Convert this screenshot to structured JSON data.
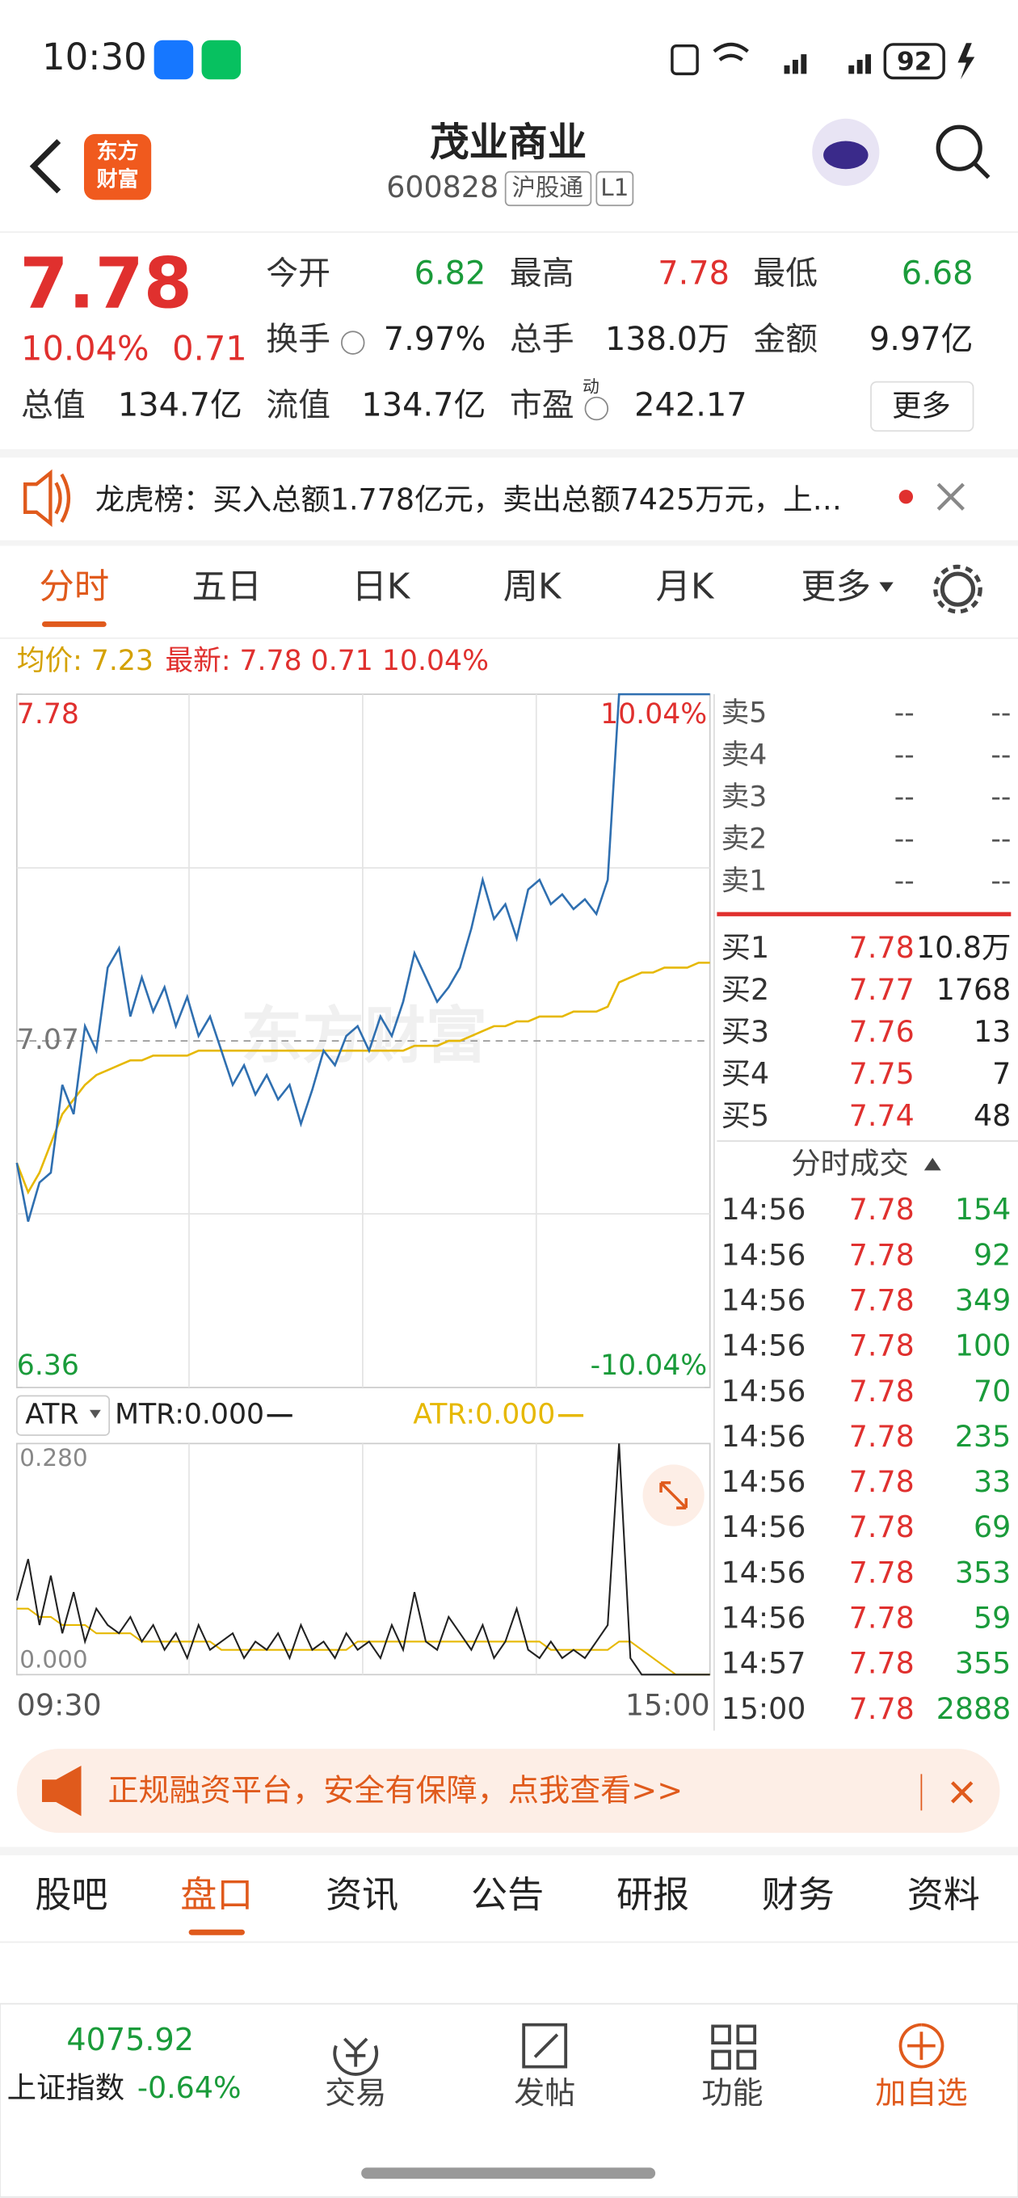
{
  "status_bar": {
    "time": "10:30",
    "battery": "92"
  },
  "header": {
    "logo": [
      "东方",
      "财富"
    ],
    "title": "茂业商业",
    "code": "600828",
    "tags": [
      "沪股通",
      "L1"
    ]
  },
  "quote": {
    "price": "7.78",
    "change_pct": "10.04%",
    "change": "0.71",
    "stats": [
      {
        "label": "今开",
        "value": "6.82",
        "color": "#1a9b3a"
      },
      {
        "label": "最高",
        "value": "7.78",
        "color": "#e0302e"
      },
      {
        "label": "最低",
        "value": "6.68",
        "color": "#1a9b3a"
      },
      {
        "label": "换手",
        "value": "7.97%",
        "color": "#222222"
      },
      {
        "label": "总手",
        "value": "138.0万",
        "color": "#222222"
      },
      {
        "label": "金额",
        "value": "9.97亿",
        "color": "#222222"
      },
      {
        "label": "总值",
        "value": "134.7亿",
        "color": "#222222"
      },
      {
        "label": "流值",
        "value": "134.7亿",
        "color": "#222222"
      },
      {
        "label": "市盈",
        "value": "242.17",
        "color": "#222222",
        "sup": "动"
      }
    ],
    "more": "更多"
  },
  "notice": "龙虎榜：买入总额1.778亿元，卖出总额7425万元，上…",
  "tabs": {
    "items": [
      "分时",
      "五日",
      "日K",
      "周K",
      "月K",
      "更多"
    ],
    "active": 0
  },
  "chart_data": [
    {
      "type": "line",
      "avg_label": "均价: 7.23",
      "latest_label": "最新: 7.78 0.71 10.04%",
      "watermark": "东方财富",
      "xlabels": [
        "09:30",
        "15:00"
      ],
      "ylim": [
        6.36,
        7.78
      ],
      "yticks": [
        6.36,
        7.07,
        7.78
      ],
      "y2lim": [
        -10.04,
        10.04
      ],
      "y2ticks": [
        {
          "value": -10.04,
          "label": "-10.04%"
        },
        {
          "value": 10.04,
          "label": "10.04%"
        }
      ],
      "series": [
        {
          "name": "最新",
          "color": "#2f6fb0",
          "values": [
            6.82,
            6.7,
            6.78,
            6.8,
            6.98,
            6.92,
            7.1,
            7.05,
            7.22,
            7.26,
            7.12,
            7.2,
            7.13,
            7.18,
            7.1,
            7.16,
            7.08,
            7.12,
            7.05,
            6.98,
            7.02,
            6.96,
            7.0,
            6.95,
            6.98,
            6.9,
            6.97,
            7.05,
            7.02,
            7.08,
            7.1,
            7.05,
            7.12,
            7.08,
            7.15,
            7.25,
            7.2,
            7.15,
            7.18,
            7.22,
            7.3,
            7.4,
            7.32,
            7.35,
            7.28,
            7.38,
            7.4,
            7.35,
            7.37,
            7.34,
            7.36,
            7.33,
            7.4,
            7.78,
            7.78,
            7.78,
            7.78,
            7.78,
            7.78,
            7.78,
            7.78,
            7.78
          ]
        },
        {
          "name": "均价",
          "color": "#e6b800",
          "values": [
            6.82,
            6.76,
            6.8,
            6.86,
            6.92,
            6.95,
            6.98,
            7.0,
            7.01,
            7.02,
            7.03,
            7.03,
            7.04,
            7.04,
            7.04,
            7.04,
            7.05,
            7.05,
            7.05,
            7.05,
            7.05,
            7.05,
            7.05,
            7.05,
            7.05,
            7.05,
            7.05,
            7.05,
            7.05,
            7.05,
            7.05,
            7.05,
            7.05,
            7.05,
            7.05,
            7.06,
            7.06,
            7.06,
            7.07,
            7.07,
            7.08,
            7.09,
            7.1,
            7.1,
            7.11,
            7.11,
            7.12,
            7.12,
            7.12,
            7.13,
            7.13,
            7.13,
            7.14,
            7.19,
            7.2,
            7.21,
            7.21,
            7.22,
            7.22,
            7.22,
            7.23,
            7.23
          ]
        }
      ]
    },
    {
      "type": "line",
      "indicator": "ATR",
      "ylim": [
        0,
        0.28
      ],
      "yticks": [
        {
          "value": 0,
          "label": "0.000"
        },
        {
          "value": 0.28,
          "label": "0.280"
        }
      ],
      "series": [
        {
          "name": "MTR:0.000",
          "color": "#222222",
          "values": [
            0.09,
            0.14,
            0.06,
            0.12,
            0.05,
            0.1,
            0.04,
            0.08,
            0.06,
            0.05,
            0.07,
            0.04,
            0.06,
            0.03,
            0.05,
            0.02,
            0.06,
            0.03,
            0.04,
            0.05,
            0.02,
            0.04,
            0.03,
            0.05,
            0.02,
            0.06,
            0.03,
            0.04,
            0.02,
            0.05,
            0.03,
            0.04,
            0.02,
            0.06,
            0.03,
            0.1,
            0.04,
            0.03,
            0.07,
            0.05,
            0.03,
            0.06,
            0.02,
            0.04,
            0.08,
            0.03,
            0.02,
            0.04,
            0.02,
            0.03,
            0.02,
            0.04,
            0.06,
            0.28,
            0.02,
            0,
            0,
            0,
            0,
            0,
            0,
            0
          ]
        },
        {
          "name": "ATR:0.000",
          "color": "#e6b800",
          "values": [
            0.08,
            0.08,
            0.07,
            0.07,
            0.06,
            0.06,
            0.06,
            0.05,
            0.05,
            0.05,
            0.05,
            0.04,
            0.04,
            0.04,
            0.04,
            0.04,
            0.04,
            0.04,
            0.03,
            0.03,
            0.03,
            0.03,
            0.03,
            0.03,
            0.03,
            0.03,
            0.03,
            0.03,
            0.03,
            0.03,
            0.04,
            0.04,
            0.04,
            0.04,
            0.04,
            0.04,
            0.04,
            0.04,
            0.04,
            0.04,
            0.04,
            0.04,
            0.04,
            0.04,
            0.04,
            0.04,
            0.04,
            0.03,
            0.03,
            0.03,
            0.03,
            0.03,
            0.03,
            0.04,
            0.04,
            0.03,
            0.02,
            0.01,
            0,
            0,
            0,
            0
          ]
        }
      ]
    }
  ],
  "order_book": {
    "sell": [
      [
        "卖5",
        "--",
        "--"
      ],
      [
        "卖4",
        "--",
        "--"
      ],
      [
        "卖3",
        "--",
        "--"
      ],
      [
        "卖2",
        "--",
        "--"
      ],
      [
        "卖1",
        "--",
        "--"
      ]
    ],
    "buy": [
      [
        "买1",
        "7.78",
        "10.8万"
      ],
      [
        "买2",
        "7.77",
        "1768"
      ],
      [
        "买3",
        "7.76",
        "13"
      ],
      [
        "买4",
        "7.75",
        "7"
      ],
      [
        "买5",
        "7.74",
        "48"
      ]
    ]
  },
  "trades": {
    "title": "分时成交",
    "rows": [
      [
        "14:56",
        "7.78",
        "154"
      ],
      [
        "14:56",
        "7.78",
        "92"
      ],
      [
        "14:56",
        "7.78",
        "349"
      ],
      [
        "14:56",
        "7.78",
        "100"
      ],
      [
        "14:56",
        "7.78",
        "70"
      ],
      [
        "14:56",
        "7.78",
        "235"
      ],
      [
        "14:56",
        "7.78",
        "33"
      ],
      [
        "14:56",
        "7.78",
        "69"
      ],
      [
        "14:56",
        "7.78",
        "353"
      ],
      [
        "14:56",
        "7.78",
        "59"
      ],
      [
        "14:57",
        "7.78",
        "355"
      ],
      [
        "15:00",
        "7.78",
        "2888"
      ]
    ]
  },
  "banner": "正规融资平台，安全有保障，点我查看>>",
  "bottom_tabs": {
    "items": [
      "股吧",
      "盘口",
      "资讯",
      "公告",
      "研报",
      "财务",
      "资料"
    ],
    "active": 1
  },
  "bottom_nav": {
    "index_value": "4075.92",
    "index_name": "上证指数",
    "index_change": "-0.64%",
    "items": [
      "交易",
      "发帖",
      "功能",
      "加自选"
    ]
  }
}
